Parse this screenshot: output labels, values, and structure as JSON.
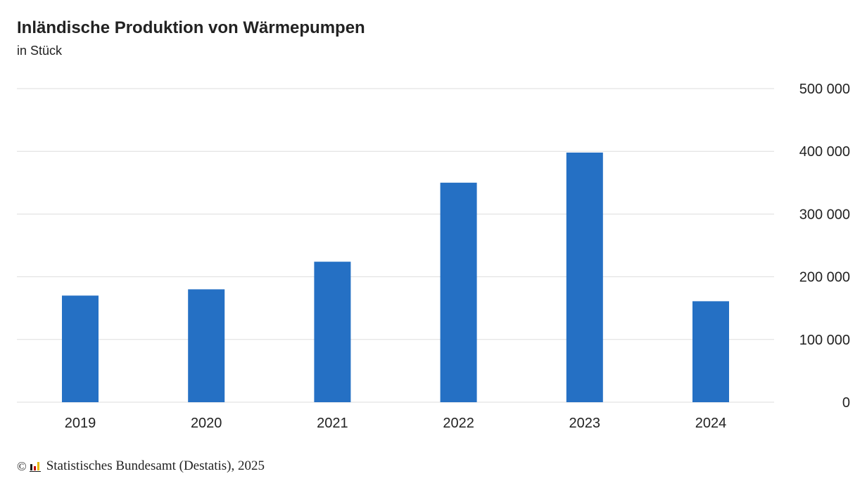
{
  "chart_data": {
    "type": "bar",
    "title": "Inländische Produktion von Wärmepumpen",
    "subtitle": "in Stück",
    "categories": [
      "2019",
      "2020",
      "2021",
      "2022",
      "2023",
      "2024"
    ],
    "values": [
      170000,
      180000,
      224000,
      350000,
      398000,
      161000
    ],
    "ylim": [
      0,
      500000
    ],
    "yticks": [
      0,
      100000,
      200000,
      300000,
      400000,
      500000
    ],
    "ytick_labels": [
      "0",
      "100 000",
      "200 000",
      "300 000",
      "400 000",
      "500 000"
    ],
    "yaxis_position": "right",
    "grid": true,
    "bar_color": "#2570c4",
    "grid_color": "#dddddd"
  },
  "footer": {
    "copyright_symbol": "©",
    "logo_icon": "destatis-logo-icon",
    "source": "Statistisches Bundesamt (Destatis), 2025"
  }
}
